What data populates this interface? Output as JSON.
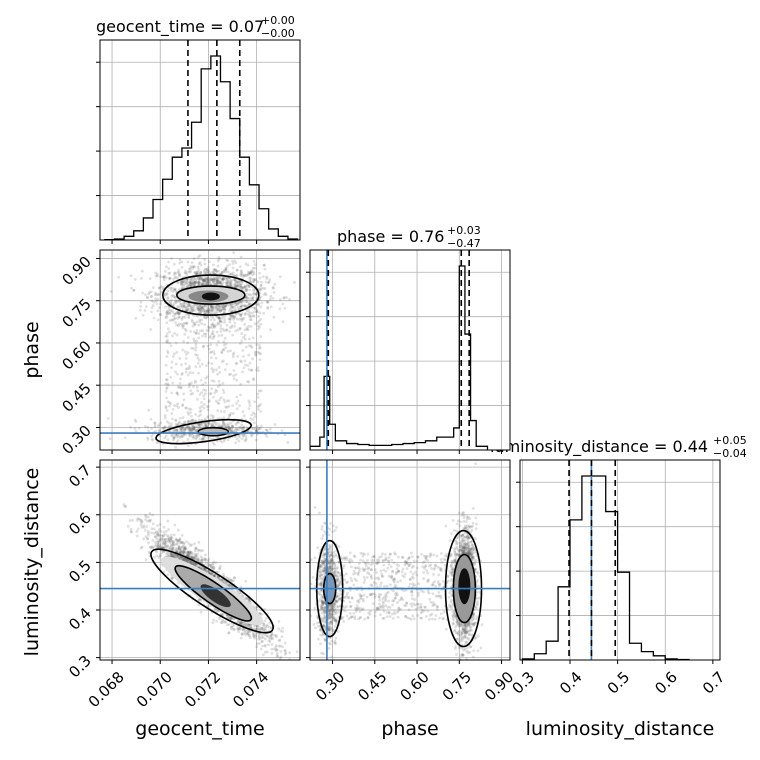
{
  "chart_data": {
    "type": "corner",
    "parameters": [
      "geocent_time",
      "phase",
      "luminosity_distance"
    ],
    "axis_labels": {
      "geocent_time": "geocent_time",
      "phase": "phase",
      "luminosity_distance": "luminosity_distance"
    },
    "ranges": {
      "geocent_time": [
        0.0675,
        0.0758
      ],
      "phase": [
        0.22,
        0.93
      ],
      "luminosity_distance": [
        0.295,
        0.715
      ]
    },
    "ticks": {
      "geocent_time": [
        "0.068",
        "0.070",
        "0.072",
        "0.074"
      ],
      "phase": [
        "0.30",
        "0.45",
        "0.60",
        "0.75",
        "0.90"
      ],
      "luminosity_distance": [
        "0.3",
        "0.4",
        "0.5",
        "0.6",
        "0.7"
      ]
    },
    "injection": {
      "phase": 0.28,
      "luminosity_distance": 0.445
    },
    "injection_color": "#3b7dbf",
    "grid": true,
    "titles": {
      "geocent_time": {
        "label": "geocent_time = 0.07",
        "plus": "+0.00",
        "minus": "−0.00"
      },
      "phase": {
        "label": "phase = 0.76",
        "plus": "+0.03",
        "minus": "−0.47"
      },
      "luminosity_distance": {
        "label": "luminosity_distance = 0.44",
        "plus": "+0.05",
        "minus": "−0.04"
      }
    },
    "quantile_lines": {
      "geocent_time": [
        0.07115,
        0.07235,
        0.0733
      ],
      "phase": [
        0.285,
        0.757,
        0.785
      ],
      "luminosity_distance": [
        0.398,
        0.445,
        0.495
      ]
    },
    "histograms": {
      "geocent_time": {
        "edges": [
          0.0677,
          0.0681,
          0.0685,
          0.0689,
          0.0693,
          0.0697,
          0.0701,
          0.0705,
          0.0709,
          0.0713,
          0.0717,
          0.0721,
          0.0725,
          0.0729,
          0.0733,
          0.0737,
          0.0741,
          0.0745,
          0.0749,
          0.0753,
          0.0757
        ],
        "counts": [
          0.002,
          0.005,
          0.02,
          0.05,
          0.12,
          0.22,
          0.33,
          0.45,
          0.5,
          0.64,
          0.93,
          1.0,
          0.86,
          0.66,
          0.45,
          0.3,
          0.17,
          0.06,
          0.02,
          0.005
        ]
      },
      "phase": {
        "edges": [
          0.22,
          0.255,
          0.27,
          0.29,
          0.31,
          0.35,
          0.39,
          0.43,
          0.47,
          0.51,
          0.55,
          0.59,
          0.63,
          0.67,
          0.71,
          0.73,
          0.75,
          0.77,
          0.79,
          0.81,
          0.85
        ],
        "counts": [
          0.02,
          0.07,
          0.4,
          0.14,
          0.05,
          0.035,
          0.03,
          0.025,
          0.025,
          0.03,
          0.035,
          0.04,
          0.05,
          0.07,
          0.07,
          0.12,
          1.0,
          0.63,
          0.16,
          0.02
        ]
      },
      "luminosity_distance": {
        "edges": [
          0.3,
          0.325,
          0.35,
          0.375,
          0.4,
          0.425,
          0.45,
          0.475,
          0.5,
          0.525,
          0.55,
          0.575,
          0.6,
          0.625,
          0.65
        ],
        "counts": [
          0.005,
          0.03,
          0.09,
          0.35,
          0.67,
          0.88,
          0.88,
          0.71,
          0.42,
          0.08,
          0.04,
          0.02,
          0.005,
          0.002
        ]
      }
    },
    "scatter_2d": {
      "phase_vs_geocent_time": {
        "x": "geocent_time",
        "y": "phase"
      },
      "luminosity_distance_vs_geocent_time": {
        "x": "geocent_time",
        "y": "luminosity_distance"
      },
      "luminosity_distance_vs_phase": {
        "x": "phase",
        "y": "luminosity_distance"
      }
    }
  }
}
